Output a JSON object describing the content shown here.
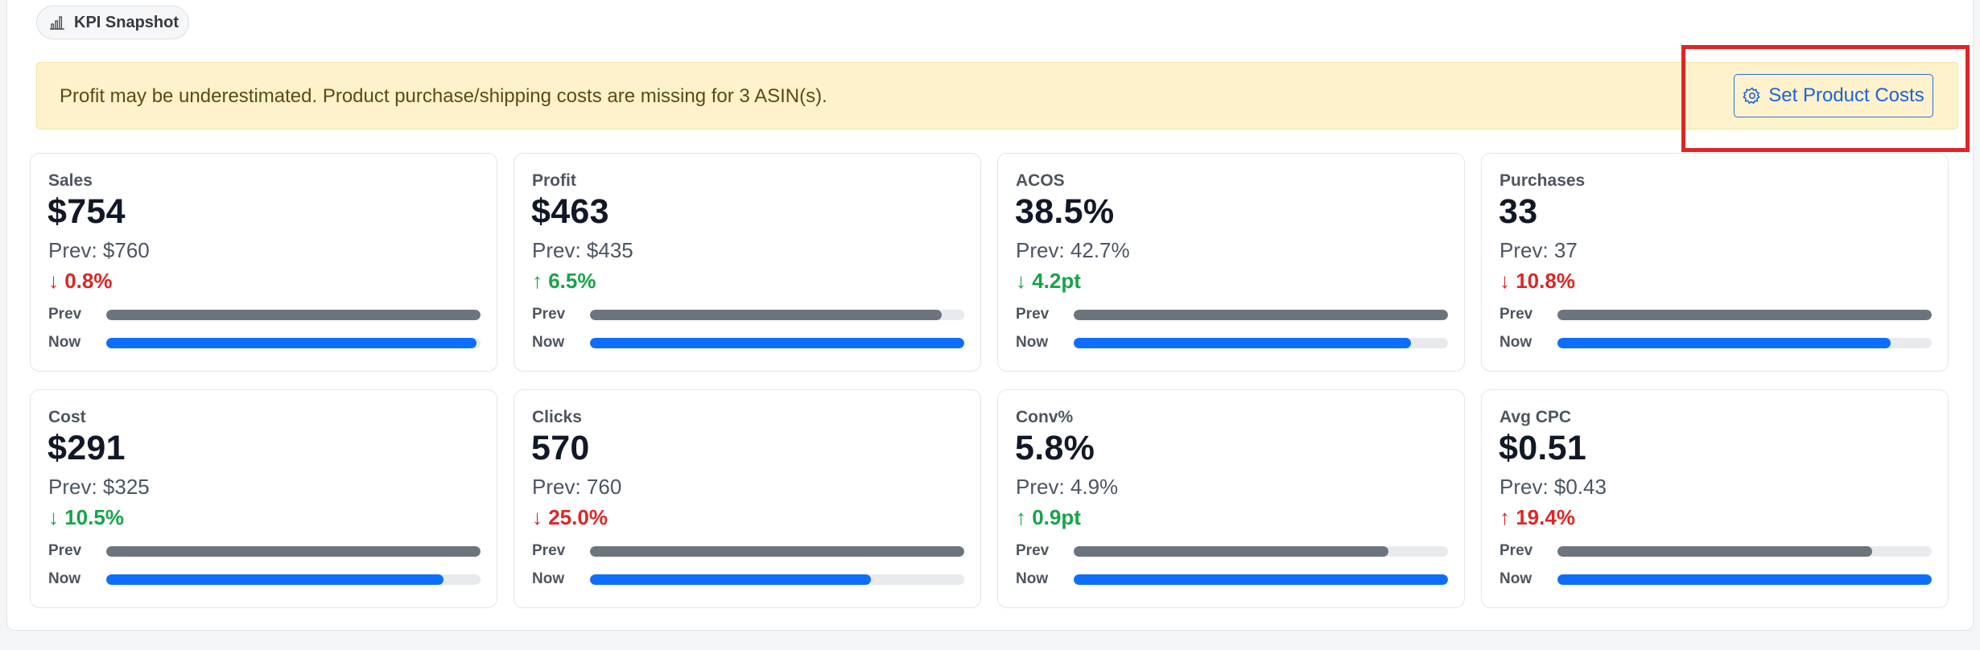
{
  "header": {
    "pill_label": "KPI Snapshot",
    "pill_icon": "bar-chart-icon"
  },
  "alert": {
    "message": "Profit may be underestimated. Product purchase/shipping costs are missing for 3 ASIN(s).",
    "button_label": "Set Product Costs",
    "button_icon": "gear-icon",
    "highlighted": true
  },
  "colors": {
    "accent": "#0d6efd",
    "prev_bar": "#6c757d",
    "positive": "#17a34a",
    "negative": "#dc2626",
    "alert_bg": "#fdf2cc",
    "highlight": "#e02424"
  },
  "bar_labels": {
    "prev": "Prev",
    "now": "Now"
  },
  "cards": [
    {
      "label": "Sales",
      "value": "$754",
      "prev": "Prev: $760",
      "change": "↓ 0.8%",
      "trend": "down",
      "prev_bar": 1.0,
      "now_bar": 0.99
    },
    {
      "label": "Profit",
      "value": "$463",
      "prev": "Prev: $435",
      "change": "↑ 6.5%",
      "trend": "up",
      "prev_bar": 0.94,
      "now_bar": 1.0
    },
    {
      "label": "ACOS",
      "value": "38.5%",
      "prev": "Prev: 42.7%",
      "change": "↓ 4.2pt",
      "trend": "up",
      "prev_bar": 1.0,
      "now_bar": 0.9
    },
    {
      "label": "Purchases",
      "value": "33",
      "prev": "Prev: 37",
      "change": "↓ 10.8%",
      "trend": "down",
      "prev_bar": 1.0,
      "now_bar": 0.89
    },
    {
      "label": "Cost",
      "value": "$291",
      "prev": "Prev: $325",
      "change": "↓ 10.5%",
      "trend": "up",
      "prev_bar": 1.0,
      "now_bar": 0.9
    },
    {
      "label": "Clicks",
      "value": "570",
      "prev": "Prev: 760",
      "change": "↓ 25.0%",
      "trend": "down",
      "prev_bar": 1.0,
      "now_bar": 0.75
    },
    {
      "label": "Conv%",
      "value": "5.8%",
      "prev": "Prev: 4.9%",
      "change": "↑ 0.9pt",
      "trend": "up",
      "prev_bar": 0.84,
      "now_bar": 1.0
    },
    {
      "label": "Avg CPC",
      "value": "$0.51",
      "prev": "Prev: $0.43",
      "change": "↑ 19.4%",
      "trend": "down",
      "prev_bar": 0.84,
      "now_bar": 1.0
    }
  ]
}
